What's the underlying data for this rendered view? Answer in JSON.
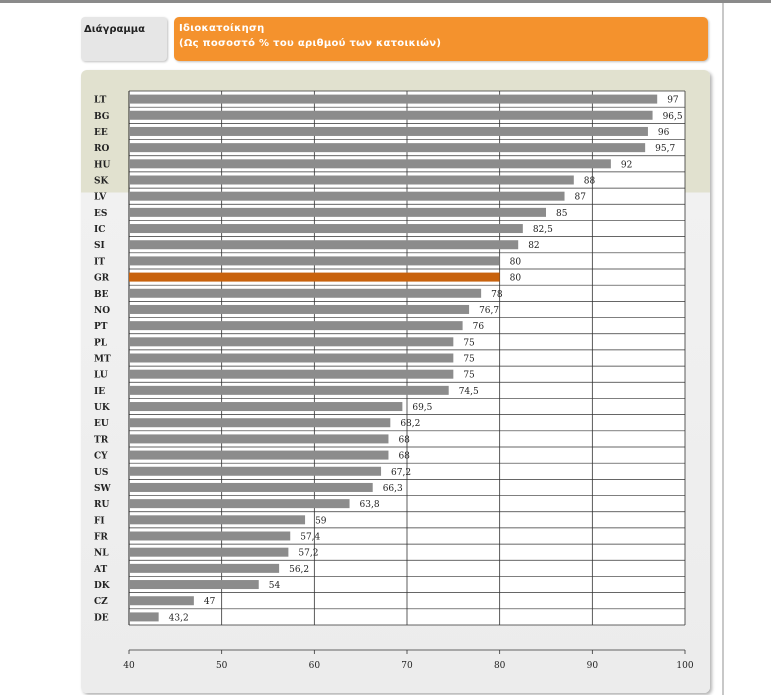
{
  "header": {
    "tab_label": "Διάγραμμα",
    "title_line1": "Ιδιοκατοίκηση",
    "title_line2": "(Ως ποσοστό % του αριθμού των κατοικιών)"
  },
  "colors": {
    "bar": "#8c8c8c",
    "highlight": "#c8620d",
    "title_bg": "#f4922d"
  },
  "chart_data": {
    "type": "bar",
    "orientation": "horizontal",
    "categories": [
      "LT",
      "BG",
      "EE",
      "RO",
      "HU",
      "SK",
      "LV",
      "ES",
      "IC",
      "SI",
      "IT",
      "GR",
      "BE",
      "NO",
      "PT",
      "PL",
      "MT",
      "LU",
      "IE",
      "UK",
      "EU",
      "TR",
      "CY",
      "US",
      "SW",
      "RU",
      "FI",
      "FR",
      "NL",
      "AT",
      "DK",
      "CZ",
      "DE"
    ],
    "values": [
      97,
      96.5,
      96,
      95.7,
      92,
      88,
      87,
      85,
      82.5,
      82,
      80,
      80,
      78,
      76.7,
      76,
      75,
      75,
      75,
      74.5,
      69.5,
      68.2,
      68,
      68,
      67.2,
      66.3,
      63.8,
      59,
      57.4,
      57.2,
      56.2,
      54,
      47,
      43.2
    ],
    "value_labels": [
      "97",
      "96,5",
      "96",
      "95,7",
      "92",
      "88",
      "87",
      "85",
      "82,5",
      "82",
      "80",
      "80",
      "78",
      "76,7",
      "76",
      "75",
      "75",
      "75",
      "74,5",
      "69,5",
      "68,2",
      "68",
      "68",
      "67,2",
      "66,3",
      "63,8",
      "59",
      "57,4",
      "57,2",
      "56,2",
      "54",
      "47",
      "43,2"
    ],
    "highlight": "GR",
    "xlim": [
      40,
      100
    ],
    "x_ticks": [
      "40",
      "50",
      "60",
      "70",
      "80",
      "90",
      "100"
    ],
    "grid": true
  }
}
